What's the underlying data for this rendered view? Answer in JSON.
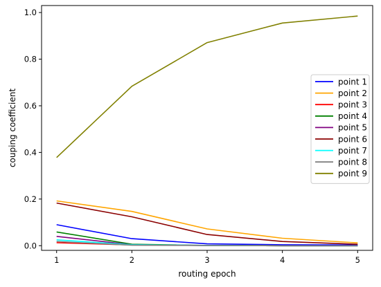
{
  "chart_data": {
    "type": "line",
    "title": "",
    "xlabel": "routing epoch",
    "ylabel": "couping coefficient",
    "x": [
      1,
      2,
      3,
      4,
      5
    ],
    "xticks": [
      "1",
      "2",
      "3",
      "4",
      "5"
    ],
    "yticks": [
      "0.0",
      "0.2",
      "0.4",
      "0.6",
      "0.8",
      "1.0"
    ],
    "xlim": [
      0.8,
      5.2
    ],
    "ylim": [
      -0.02,
      1.03
    ],
    "grid": false,
    "legend_position": "center-right",
    "series": [
      {
        "name": "point 1",
        "color": "#0000ff",
        "values": [
          0.09,
          0.03,
          0.008,
          0.004,
          0.003
        ]
      },
      {
        "name": "point 2",
        "color": "#ffa500",
        "values": [
          0.192,
          0.147,
          0.072,
          0.032,
          0.012
        ]
      },
      {
        "name": "point 3",
        "color": "#ff0000",
        "values": [
          0.013,
          0.003,
          0.001,
          0.0,
          0.0
        ]
      },
      {
        "name": "point 4",
        "color": "#008000",
        "values": [
          0.059,
          0.006,
          0.001,
          0.0,
          0.0
        ]
      },
      {
        "name": "point 5",
        "color": "#800080",
        "values": [
          0.04,
          0.004,
          0.001,
          0.0,
          0.0
        ]
      },
      {
        "name": "point 6",
        "color": "#8b0000",
        "values": [
          0.183,
          0.124,
          0.048,
          0.018,
          0.006
        ]
      },
      {
        "name": "point 7",
        "color": "#00ffff",
        "values": [
          0.025,
          0.004,
          0.001,
          0.0,
          0.0
        ]
      },
      {
        "name": "point 8",
        "color": "#808080",
        "values": [
          0.018,
          0.002,
          0.001,
          0.0,
          0.0
        ]
      },
      {
        "name": "point 9",
        "color": "#808000",
        "values": [
          0.378,
          0.684,
          0.871,
          0.955,
          0.985
        ]
      }
    ]
  }
}
